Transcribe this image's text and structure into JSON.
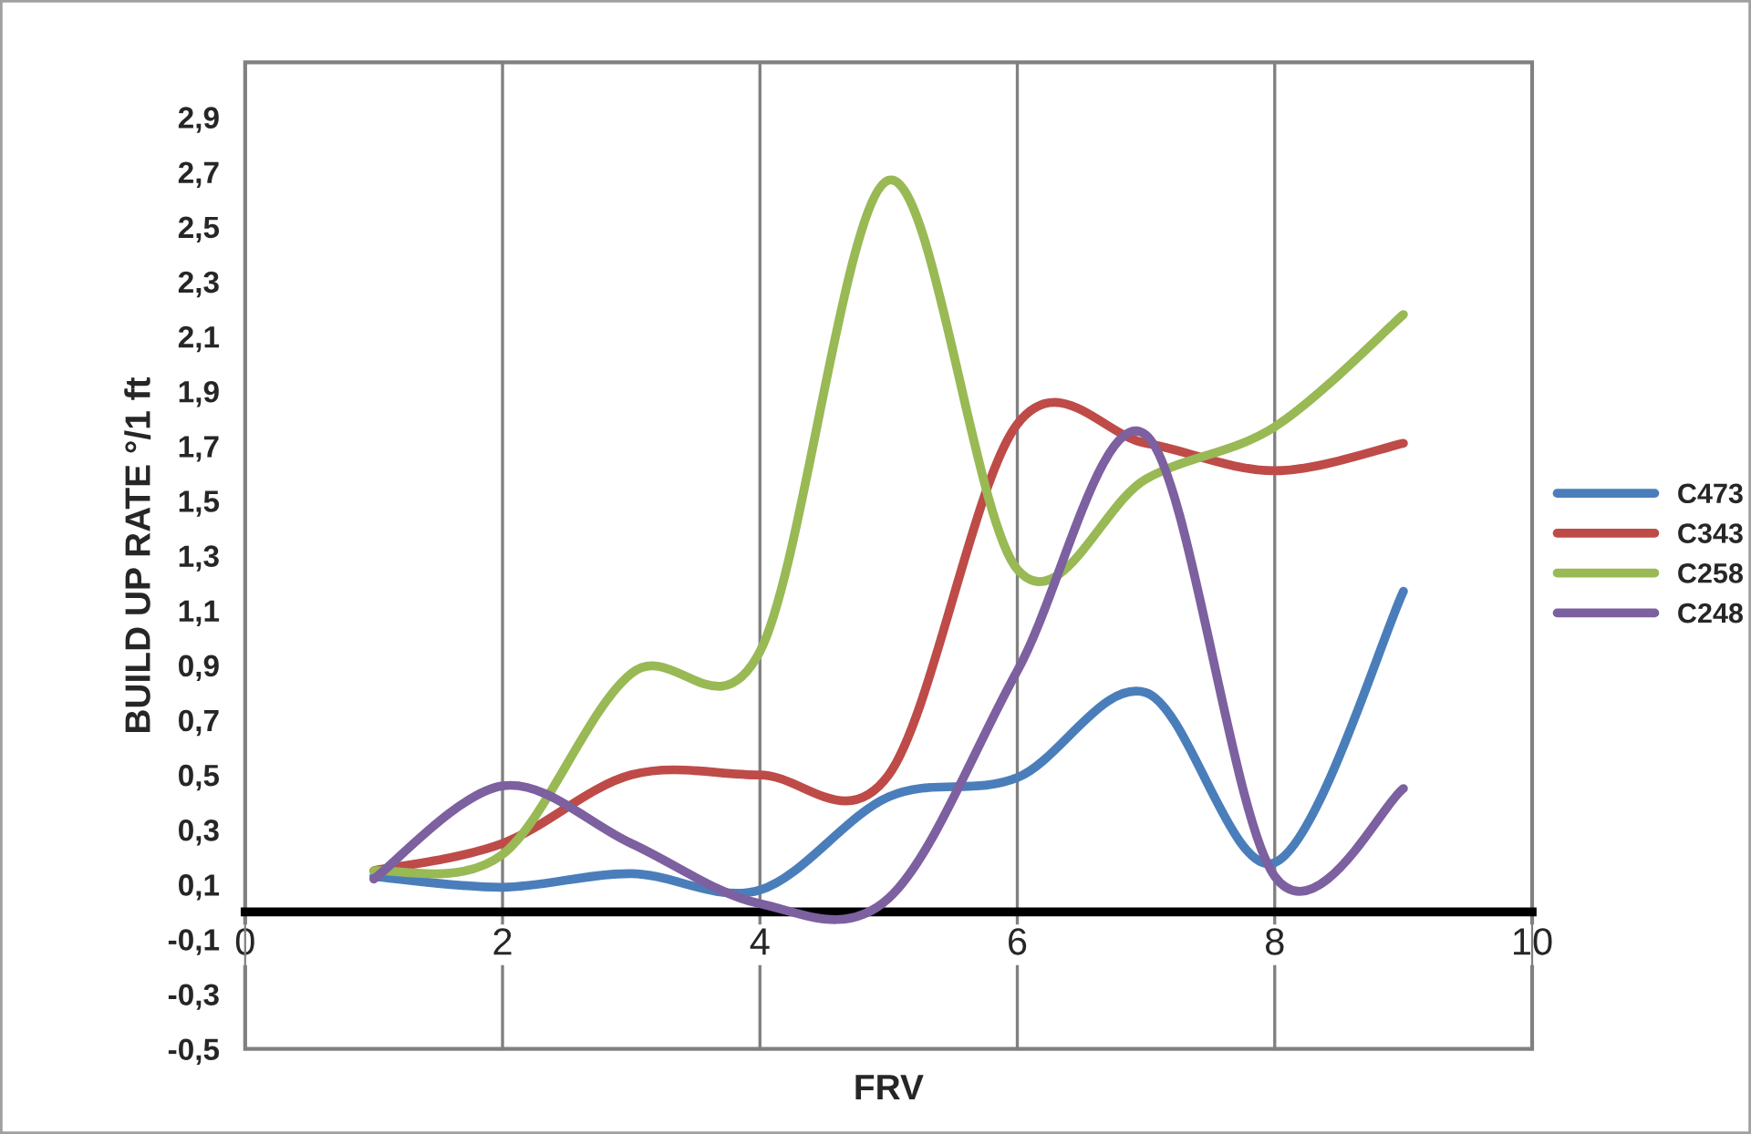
{
  "chart_data": {
    "type": "line",
    "xlabel": "FRV",
    "ylabel": "BUILD UP RATE °/1 ft",
    "x": [
      1,
      2,
      3,
      4,
      5,
      6,
      7,
      8,
      9
    ],
    "series": [
      {
        "name": "C473",
        "color": "#4a7ebb",
        "values": [
          0.13,
          0.09,
          0.14,
          0.08,
          0.42,
          0.49,
          0.8,
          0.18,
          1.17
        ]
      },
      {
        "name": "C343",
        "color": "#be4b48",
        "values": [
          0.15,
          0.25,
          0.5,
          0.5,
          0.5,
          1.78,
          1.71,
          1.61,
          1.71
        ]
      },
      {
        "name": "C258",
        "color": "#98b954",
        "values": [
          0.15,
          0.21,
          0.87,
          0.95,
          2.67,
          1.25,
          1.58,
          1.77,
          2.18
        ]
      },
      {
        "name": "C248",
        "color": "#7d60a0",
        "values": [
          0.12,
          0.46,
          0.25,
          0.03,
          0.05,
          0.88,
          1.74,
          0.13,
          0.45
        ]
      }
    ],
    "xlim": [
      0,
      10
    ],
    "xticks": [
      0,
      2,
      4,
      6,
      8,
      10
    ],
    "ylim": [
      -0.5,
      3.1
    ],
    "yticks": [
      {
        "value": -0.5,
        "label": "-0,5"
      },
      {
        "value": -0.3,
        "label": "-0,3"
      },
      {
        "value": -0.1,
        "label": "-0,1"
      },
      {
        "value": 0.1,
        "label": "0,1"
      },
      {
        "value": 0.3,
        "label": "0,3"
      },
      {
        "value": 0.5,
        "label": "0,5"
      },
      {
        "value": 0.7,
        "label": "0,7"
      },
      {
        "value": 0.9,
        "label": "0,9"
      },
      {
        "value": 1.1,
        "label": "1,1"
      },
      {
        "value": 1.3,
        "label": "1,3"
      },
      {
        "value": 1.5,
        "label": "1,5"
      },
      {
        "value": 1.7,
        "label": "1,7"
      },
      {
        "value": 1.9,
        "label": "1,9"
      },
      {
        "value": 2.1,
        "label": "2,1"
      },
      {
        "value": 2.3,
        "label": "2,3"
      },
      {
        "value": 2.5,
        "label": "2,5"
      },
      {
        "value": 2.7,
        "label": "2,7"
      },
      {
        "value": 2.9,
        "label": "2,9"
      }
    ],
    "grid": "x",
    "legend": "right",
    "marker": "none",
    "line_style": "solid"
  }
}
